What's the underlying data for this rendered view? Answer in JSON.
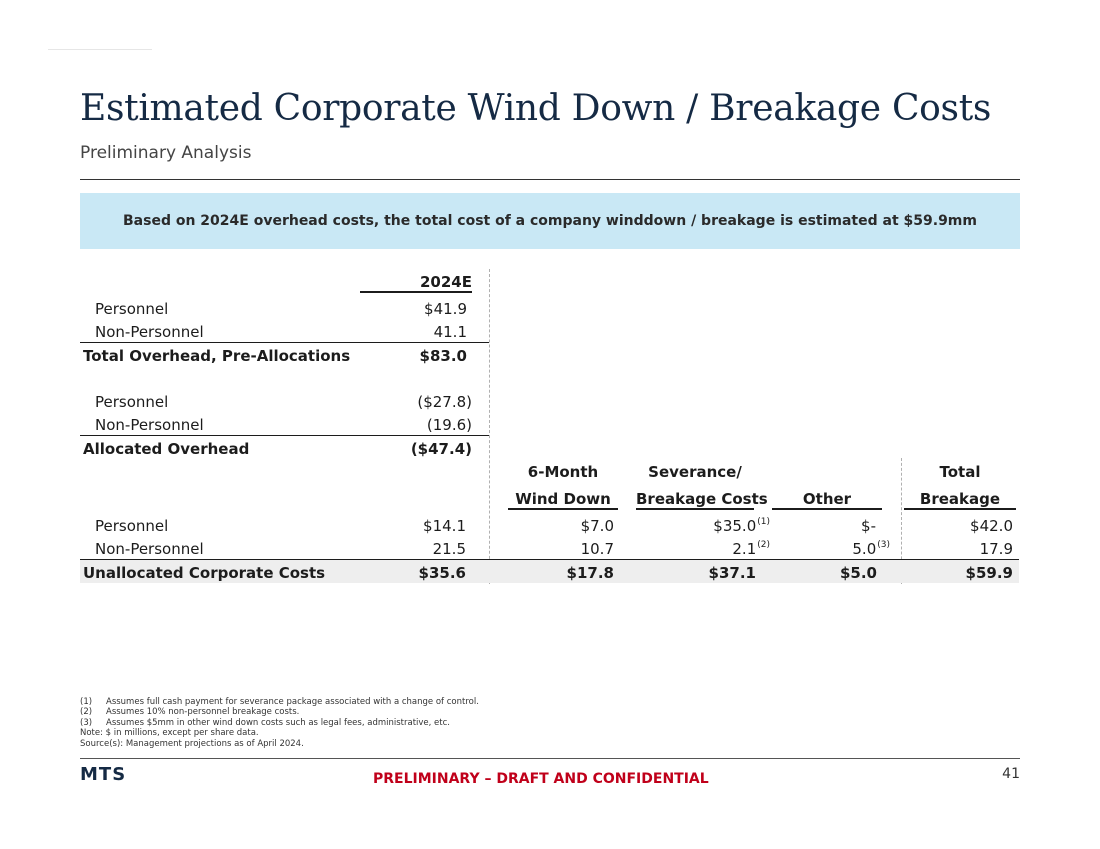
{
  "title": "Estimated Corporate Wind Down / Breakage Costs",
  "subtitle": "Preliminary Analysis",
  "banner": "Based on 2024E overhead costs, the total cost of a company winddown / breakage is estimated at $59.9mm",
  "table": {
    "col_2024e": "2024E",
    "col_wind_1": "6-Month",
    "col_wind_2": "Wind Down",
    "col_sev_1": "Severance/",
    "col_sev_2": "Breakage Costs",
    "col_other": "Other",
    "col_total_1": "Total",
    "col_total_2": "Breakage",
    "s1": [
      {
        "label": "Personnel",
        "value": "$41.9"
      },
      {
        "label": "Non-Personnel",
        "value": "41.1"
      },
      {
        "label": "Total Overhead, Pre-Allocations",
        "value": "$83.0"
      }
    ],
    "s2": [
      {
        "label": "Personnel",
        "value": "($27.8)"
      },
      {
        "label": "Non-Personnel",
        "value": "(19.6)"
      },
      {
        "label": "Allocated Overhead",
        "value": "($47.4)"
      }
    ],
    "s3": [
      {
        "label": "Personnel",
        "value": "$14.1",
        "wind": "$7.0",
        "sev": "$35.0",
        "sev_note": "(1)",
        "other": "$-",
        "other_note": "",
        "total": "$42.0"
      },
      {
        "label": "Non-Personnel",
        "value": "21.5",
        "wind": "10.7",
        "sev": "2.1",
        "sev_note": "(2)",
        "other": "5.0",
        "other_note": "(3)",
        "total": "17.9"
      },
      {
        "label": "Unallocated Corporate Costs",
        "value": "$35.6",
        "wind": "$17.8",
        "sev": "$37.1",
        "sev_note": "",
        "other": "$5.0",
        "other_note": "",
        "total": "$59.9"
      }
    ]
  },
  "footnotes": [
    {
      "num": "(1)",
      "text": "Assumes full cash payment for severance package associated with a change of control."
    },
    {
      "num": "(2)",
      "text": "Assumes 10% non-personnel breakage costs."
    },
    {
      "num": "(3)",
      "text": "Assumes $5mm in other wind down costs such as legal fees, administrative, etc."
    }
  ],
  "note": "Note: $ in millions, except per share data.",
  "source": "Source(s): Management projections as of April 2024.",
  "logo": "MTS",
  "confidential": "PRELIMINARY – DRAFT AND CONFIDENTIAL",
  "page_number": "41"
}
